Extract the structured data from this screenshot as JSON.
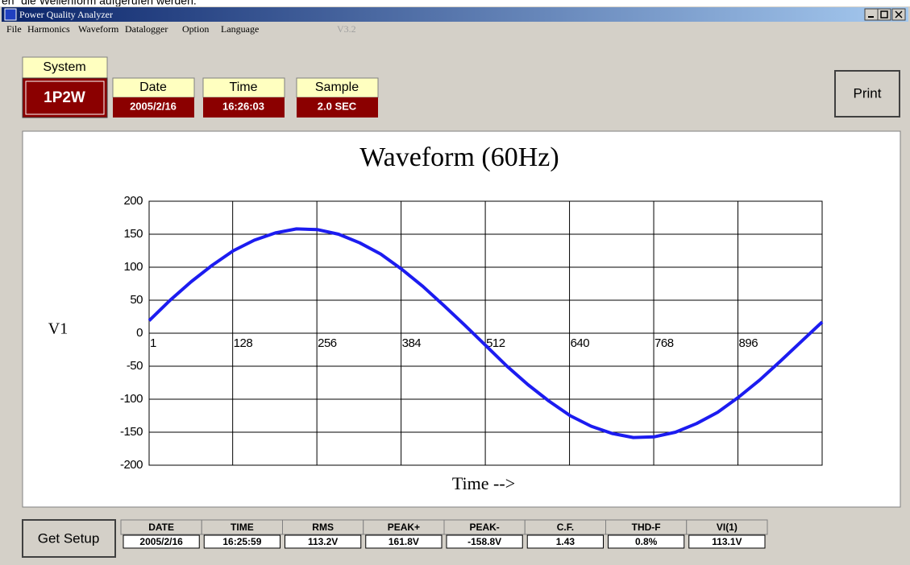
{
  "caption": "en“ die Wellenform aufgerufen werden.",
  "window": {
    "title": "Power Quality Analyzer",
    "menu": [
      "File",
      "Harmonics",
      "Waveform",
      "Datalogger",
      "Option",
      "Language"
    ],
    "version": "V3.2"
  },
  "status": {
    "system": {
      "label": "System",
      "value": "1P2W"
    },
    "date": {
      "label": "Date",
      "value": "2005/2/16"
    },
    "time": {
      "label": "Time",
      "value": "16:26:03"
    },
    "sample": {
      "label": "Sample",
      "value": "2.0 SEC"
    }
  },
  "buttons": {
    "print": "Print",
    "get_setup": "Get Setup"
  },
  "chart_data": {
    "type": "line",
    "title": "Waveform (60Hz)",
    "ylabel": "V1",
    "xlabel": "Time -->",
    "x": [
      1,
      33,
      65,
      97,
      129,
      161,
      193,
      225,
      257,
      289,
      321,
      353,
      385,
      417,
      449,
      481,
      513,
      545,
      577,
      609,
      641,
      673,
      705,
      737,
      769,
      801,
      833,
      865,
      897,
      929,
      961,
      993,
      1024
    ],
    "values": [
      19,
      50,
      78,
      103,
      125,
      141,
      152,
      158,
      157,
      150,
      137,
      120,
      97,
      71,
      42,
      12,
      -19,
      -50,
      -78,
      -103,
      -125,
      -141,
      -152,
      -158,
      -157,
      -150,
      -137,
      -120,
      -97,
      -71,
      -42,
      -12,
      17
    ],
    "color": "#1c1cf0",
    "xlim": [
      1,
      1024
    ],
    "ylim": [
      -200,
      200
    ],
    "xticks": [
      1,
      128,
      256,
      384,
      512,
      640,
      768,
      896
    ],
    "yticks": [
      -200,
      -150,
      -100,
      -50,
      0,
      50,
      100,
      150,
      200
    ],
    "grid": true
  },
  "table": {
    "headers": [
      "DATE",
      "TIME",
      "RMS",
      "PEAK+",
      "PEAK-",
      "C.F.",
      "THD-F",
      "VI(1)"
    ],
    "rows": [
      [
        "2005/2/16",
        "16:25:59",
        "113.2V",
        "161.8V",
        "-158.8V",
        "1.43",
        "0.8%",
        "113.1V"
      ]
    ]
  }
}
